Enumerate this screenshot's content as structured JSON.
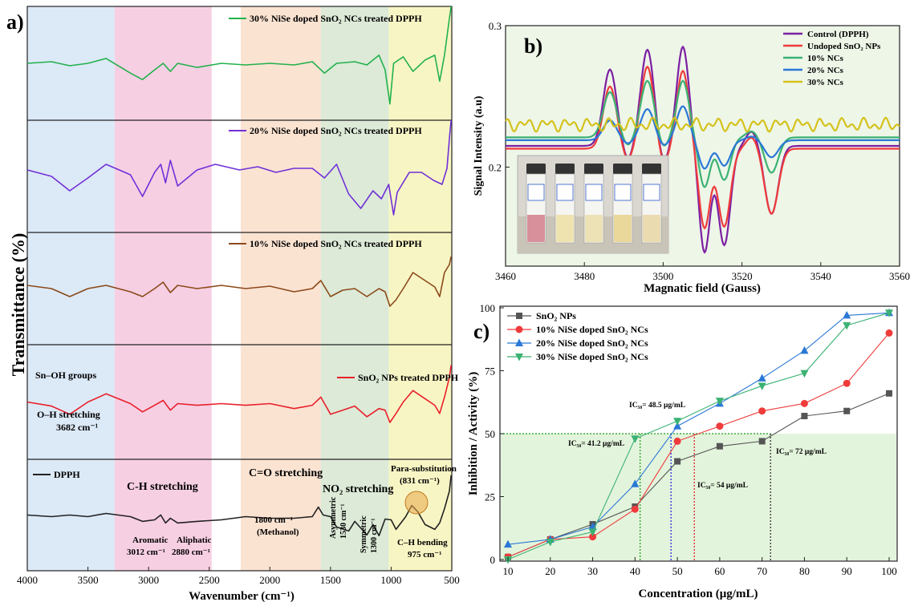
{
  "panel_labels": {
    "a": "a)",
    "b": "b)",
    "c": "c)"
  },
  "chart_data": [
    {
      "panel": "a",
      "type": "line",
      "xlabel": "Wavenumber (cm⁻¹)",
      "ylabel": "Transmittance (%)",
      "x_ticks": [
        "4000",
        "3500",
        "3000",
        "2500",
        "2000",
        "1500",
        "1000",
        "500"
      ],
      "xlim": [
        4000,
        500
      ],
      "x_reversed": true,
      "regions": [
        {
          "from": 4000,
          "to": 3280,
          "color": "#dce9f7"
        },
        {
          "from": 3280,
          "to": 2480,
          "color": "#f7cfe3"
        },
        {
          "from": 2240,
          "to": 1580,
          "color": "#fbe3d2"
        },
        {
          "from": 1580,
          "to": 1020,
          "color": "#dcead7"
        },
        {
          "from": 1020,
          "to": 500,
          "color": "#f8f5c4"
        }
      ],
      "series": [
        {
          "name": "30% NiSe doped SnO₂ NCs treated DPPH",
          "color": "#22b14c",
          "points": [
            [
              4000,
              70
            ],
            [
              3800,
              68
            ],
            [
              3650,
              73
            ],
            [
              3500,
              70
            ],
            [
              3350,
              64
            ],
            [
              3150,
              82
            ],
            [
              3050,
              90
            ],
            [
              2950,
              78
            ],
            [
              2880,
              70
            ],
            [
              2820,
              80
            ],
            [
              2760,
              70
            ],
            [
              2600,
              75
            ],
            [
              2400,
              70
            ],
            [
              2200,
              72
            ],
            [
              2000,
              70
            ],
            [
              1800,
              72
            ],
            [
              1650,
              68
            ],
            [
              1550,
              82
            ],
            [
              1450,
              70
            ],
            [
              1300,
              68
            ],
            [
              1200,
              72
            ],
            [
              1100,
              60
            ],
            [
              1050,
              78
            ],
            [
              1010,
              120
            ],
            [
              980,
              70
            ],
            [
              900,
              62
            ],
            [
              820,
              80
            ],
            [
              720,
              66
            ],
            [
              640,
              60
            ],
            [
              600,
              92
            ],
            [
              560,
              60
            ],
            [
              520,
              15
            ],
            [
              505,
              0
            ]
          ]
        },
        {
          "name": "20% NiSe doped SnO₂ NCs treated DPPH",
          "color": "#7030d8",
          "points": [
            [
              4000,
              62
            ],
            [
              3800,
              70
            ],
            [
              3650,
              88
            ],
            [
              3500,
              72
            ],
            [
              3350,
              55
            ],
            [
              3150,
              68
            ],
            [
              3050,
              95
            ],
            [
              2950,
              65
            ],
            [
              2900,
              55
            ],
            [
              2860,
              78
            ],
            [
              2820,
              50
            ],
            [
              2760,
              82
            ],
            [
              2600,
              62
            ],
            [
              2450,
              55
            ],
            [
              2250,
              62
            ],
            [
              2100,
              58
            ],
            [
              1950,
              65
            ],
            [
              1800,
              60
            ],
            [
              1650,
              60
            ],
            [
              1550,
              72
            ],
            [
              1450,
              55
            ],
            [
              1350,
              92
            ],
            [
              1250,
              110
            ],
            [
              1150,
              88
            ],
            [
              1080,
              98
            ],
            [
              1020,
              80
            ],
            [
              980,
              118
            ],
            [
              950,
              90
            ],
            [
              850,
              65
            ],
            [
              750,
              65
            ],
            [
              650,
              75
            ],
            [
              580,
              80
            ],
            [
              540,
              60
            ],
            [
              515,
              15
            ],
            [
              505,
              0
            ]
          ]
        },
        {
          "name": "10% NiSe doped SnO₂ NCs treated DPPH",
          "color": "#8b4a1a",
          "points": [
            [
              4000,
              66
            ],
            [
              3800,
              70
            ],
            [
              3650,
              80
            ],
            [
              3500,
              70
            ],
            [
              3350,
              66
            ],
            [
              3150,
              74
            ],
            [
              3050,
              80
            ],
            [
              2950,
              70
            ],
            [
              2880,
              62
            ],
            [
              2820,
              75
            ],
            [
              2760,
              66
            ],
            [
              2600,
              70
            ],
            [
              2400,
              66
            ],
            [
              2200,
              70
            ],
            [
              2000,
              67
            ],
            [
              1800,
              74
            ],
            [
              1650,
              70
            ],
            [
              1580,
              60
            ],
            [
              1500,
              80
            ],
            [
              1400,
              72
            ],
            [
              1300,
              70
            ],
            [
              1200,
              80
            ],
            [
              1100,
              70
            ],
            [
              1050,
              74
            ],
            [
              1010,
              92
            ],
            [
              960,
              84
            ],
            [
              900,
              70
            ],
            [
              820,
              50
            ],
            [
              720,
              60
            ],
            [
              640,
              68
            ],
            [
              600,
              80
            ],
            [
              560,
              50
            ],
            [
              520,
              40
            ],
            [
              505,
              30
            ]
          ]
        },
        {
          "name": "SnO₂ NPs treated DPPH",
          "color": "#e8202a",
          "points": [
            [
              4000,
              70
            ],
            [
              3800,
              75
            ],
            [
              3650,
              85
            ],
            [
              3500,
              70
            ],
            [
              3350,
              60
            ],
            [
              3150,
              72
            ],
            [
              3050,
              82
            ],
            [
              2950,
              74
            ],
            [
              2880,
              68
            ],
            [
              2820,
              80
            ],
            [
              2760,
              72
            ],
            [
              2600,
              74
            ],
            [
              2400,
              72
            ],
            [
              2200,
              74
            ],
            [
              2000,
              72
            ],
            [
              1800,
              78
            ],
            [
              1650,
              74
            ],
            [
              1580,
              64
            ],
            [
              1500,
              85
            ],
            [
              1400,
              80
            ],
            [
              1300,
              75
            ],
            [
              1200,
              88
            ],
            [
              1100,
              78
            ],
            [
              1050,
              80
            ],
            [
              1010,
              95
            ],
            [
              960,
              84
            ],
            [
              900,
              70
            ],
            [
              820,
              56
            ],
            [
              720,
              66
            ],
            [
              640,
              74
            ],
            [
              600,
              84
            ],
            [
              560,
              64
            ],
            [
              520,
              40
            ],
            [
              505,
              25
            ]
          ]
        },
        {
          "name": "DPPH",
          "color": "#222222",
          "points": [
            [
              4000,
              70
            ],
            [
              3800,
              72
            ],
            [
              3650,
              70
            ],
            [
              3500,
              72
            ],
            [
              3350,
              68
            ],
            [
              3150,
              72
            ],
            [
              3050,
              78
            ],
            [
              2950,
              76
            ],
            [
              2900,
              70
            ],
            [
              2860,
              80
            ],
            [
              2820,
              74
            ],
            [
              2760,
              80
            ],
            [
              2600,
              78
            ],
            [
              2400,
              76
            ],
            [
              2200,
              72
            ],
            [
              2000,
              74
            ],
            [
              1800,
              74
            ],
            [
              1650,
              72
            ],
            [
              1600,
              60
            ],
            [
              1560,
              70
            ],
            [
              1500,
              72
            ],
            [
              1450,
              85
            ],
            [
              1350,
              90
            ],
            [
              1300,
              78
            ],
            [
              1200,
              95
            ],
            [
              1150,
              82
            ],
            [
              1100,
              96
            ],
            [
              1050,
              75
            ],
            [
              1000,
              76
            ],
            [
              960,
              88
            ],
            [
              880,
              72
            ],
            [
              830,
              58
            ],
            [
              780,
              66
            ],
            [
              720,
              82
            ],
            [
              640,
              88
            ],
            [
              600,
              80
            ],
            [
              560,
              62
            ],
            [
              520,
              40
            ],
            [
              505,
              20
            ]
          ]
        }
      ],
      "annotations": {
        "sn_oh": "Sn–OH groups",
        "oh_stretch": "O–H stretching",
        "oh_value": "3682 cm⁻¹",
        "ch_stretch": "C-H stretching",
        "co_stretch": "C=O stretching",
        "no2_stretch": "NO₂ stretching",
        "para": "Para-substitution",
        "para_value": "(831 cm⁻¹)",
        "aromatic": "Aromatic",
        "aromatic_value": "3012 cm⁻¹",
        "aliphatic": "Aliphatic",
        "aliphatic_value": "2880 cm⁻¹",
        "methanol_value": "1800 cm⁻¹",
        "methanol": "(Methanol)",
        "asym": "Asymmetric",
        "asym_value": "1530 cm⁻¹",
        "sym": "Symmetric",
        "sym_value": "1300 cm⁻¹",
        "ch_bend": "C–H bending",
        "ch_bend_value": "975 cm⁻¹"
      }
    },
    {
      "panel": "b",
      "type": "line",
      "xlabel": "Magnatic field (Gauss)",
      "ylabel": "Signal Intensity (a.u)",
      "xlim": [
        3460,
        3560
      ],
      "ylim": [
        0.13,
        0.3
      ],
      "x_ticks": [
        3460,
        3480,
        3500,
        3520,
        3540,
        3560
      ],
      "y_ticks": [
        "0.3",
        "0.2"
      ],
      "y_tick_values": [
        0.3,
        0.2
      ],
      "legend_position": "top-right",
      "inset": "photo of five vials",
      "series": [
        {
          "name": "Control (DPPH)",
          "color": "#7b1fa2",
          "center": 0.215,
          "amps": [
            0.054,
            0.068,
            0.07,
            0.075,
            0.07,
            0.048
          ],
          "noise": 0.0
        },
        {
          "name": "Undoped SnO₂ NPs",
          "color": "#ef3b3b",
          "center": 0.213,
          "amps": [
            0.044,
            0.058,
            0.055,
            0.056,
            0.055,
            0.046
          ],
          "noise": 0.0
        },
        {
          "name": "10% NCs",
          "color": "#3bb273",
          "center": 0.221,
          "amps": [
            0.032,
            0.04,
            0.04,
            0.035,
            0.03,
            0.025
          ],
          "noise": 0.0
        },
        {
          "name": "20% NCs",
          "color": "#2a78d6",
          "center": 0.219,
          "amps": [
            0.014,
            0.022,
            0.024,
            0.02,
            0.018,
            0.012
          ],
          "noise": 0.0
        },
        {
          "name": "30% NCs",
          "color": "#d4c21c",
          "center": 0.23,
          "amps": [
            0.0,
            0.0,
            0.0,
            0.0,
            0.0,
            0.0
          ],
          "noise": 0.005
        }
      ]
    },
    {
      "panel": "c",
      "type": "line",
      "xlabel": "Concentration (μg/mL)",
      "ylabel": "Inhibition / Activity (%)",
      "xlim": [
        10,
        100
      ],
      "ylim": [
        0,
        100
      ],
      "x_ticks": [
        10,
        20,
        30,
        40,
        50,
        60,
        70,
        80,
        90,
        100
      ],
      "y_ticks": [
        0,
        25,
        50,
        75,
        100
      ],
      "legend_position": "top-left",
      "x": [
        10,
        20,
        30,
        40,
        50,
        60,
        70,
        80,
        90,
        100
      ],
      "series": [
        {
          "name": "SnO₂ NPs",
          "color": "#555555",
          "marker": "square",
          "values": [
            1,
            8,
            14,
            21,
            39,
            45,
            47,
            57,
            59,
            66
          ]
        },
        {
          "name": "10% NiSe doped SnO₂ NCs",
          "color": "#ef3b3b",
          "marker": "circle",
          "values": [
            1,
            8,
            9,
            20,
            47,
            53,
            59,
            62,
            70,
            90
          ]
        },
        {
          "name": "20% NiSe doped SnO₂ NCs",
          "color": "#2a78d6",
          "marker": "triangle-up",
          "values": [
            6,
            8,
            13,
            30,
            53,
            62,
            72,
            83,
            97,
            98
          ]
        },
        {
          "name": "30% NiSe doped SnO₂ NCs",
          "color": "#3bb273",
          "marker": "triangle-down",
          "values": [
            0,
            7,
            11,
            48,
            55,
            63,
            69,
            74,
            93,
            98
          ]
        }
      ],
      "ic50": [
        {
          "label": "IC₅₀= 48.5 μg/mL",
          "x": 48.5,
          "color": "#2a2adc"
        },
        {
          "label": "IC₅₀= 41.2 μg/mL",
          "x": 41.2,
          "color": "#22a022"
        },
        {
          "label": "IC₅₀= 54 μg/mL",
          "x": 54,
          "color": "#e22222"
        },
        {
          "label": "IC₅₀= 72 μg/mL",
          "x": 72,
          "color": "#333333"
        }
      ]
    }
  ]
}
